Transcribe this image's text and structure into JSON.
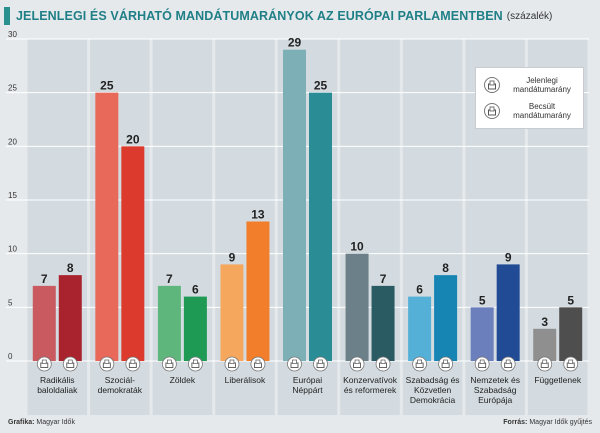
{
  "header": {
    "title": "JELENLEGI ÉS VÁRHATÓ MANDÁTUMARÁNYOK AZ EURÓPAI PARLAMENTBEN",
    "unit": "(százalék)"
  },
  "footer": {
    "left_label": "Grafika:",
    "left_value": "Magyar Idők",
    "right_label": "Forrás:",
    "right_value": "Magyar Idők gyűjtés"
  },
  "legend": {
    "current_line1": "Jelenlegi",
    "current_line2": "mandátumarány",
    "estimated_line1": "Becsült",
    "estimated_line2": "mandátumarány"
  },
  "chart_data": {
    "type": "bar",
    "ylim": [
      0,
      30
    ],
    "yticks": [
      0,
      5,
      10,
      15,
      20,
      25,
      30
    ],
    "grid": true,
    "legend_position": "top-right",
    "series": [
      {
        "name": "Jelenlegi mandátumarány",
        "values": [
          7,
          25,
          7,
          9,
          29,
          10,
          6,
          5,
          3
        ]
      },
      {
        "name": "Becsült mandátumarány",
        "values": [
          8,
          20,
          6,
          13,
          25,
          7,
          8,
          9,
          5
        ]
      }
    ],
    "categories": [
      {
        "lines": [
          "Radikális",
          "baloldaliak"
        ],
        "colors": [
          "#c95a5f",
          "#a8232d"
        ]
      },
      {
        "lines": [
          "Szociál-",
          "demokraták"
        ],
        "colors": [
          "#e8685a",
          "#dc3a2c"
        ]
      },
      {
        "lines": [
          "Zöldek"
        ],
        "colors": [
          "#5fb67c",
          "#1e9a55"
        ]
      },
      {
        "lines": [
          "Liberálisok"
        ],
        "colors": [
          "#f6a75e",
          "#f27e2b"
        ]
      },
      {
        "lines": [
          "Európai",
          "Néppárt"
        ],
        "colors": [
          "#7cb0b6",
          "#2a8d96"
        ]
      },
      {
        "lines": [
          "Konzervatívok",
          "és reformerek"
        ],
        "colors": [
          "#6b8088",
          "#2a5a62"
        ]
      },
      {
        "lines": [
          "Szabadság és",
          "Közvetlen",
          "Demokrácia"
        ],
        "colors": [
          "#55b0d8",
          "#1785b3"
        ]
      },
      {
        "lines": [
          "Nemzetek és",
          "Szabadság",
          "Európája"
        ],
        "colors": [
          "#6b7fbd",
          "#214b94"
        ]
      },
      {
        "lines": [
          "Függetlenek"
        ],
        "colors": [
          "#8f8f8f",
          "#4e4e4e"
        ]
      }
    ]
  }
}
